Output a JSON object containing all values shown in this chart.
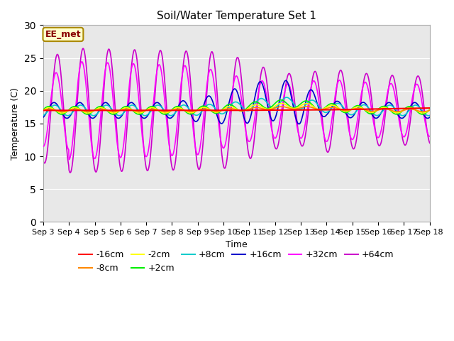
{
  "title": "Soil/Water Temperature Set 1",
  "xlabel": "Time",
  "ylabel": "Temperature (C)",
  "xlim": [
    0,
    15
  ],
  "ylim": [
    0,
    30
  ],
  "yticks": [
    0,
    5,
    10,
    15,
    20,
    25,
    30
  ],
  "xtick_labels": [
    "Sep 3",
    "Sep 4",
    "Sep 5",
    "Sep 6",
    "Sep 7",
    "Sep 8",
    "Sep 9",
    "Sep 10",
    "Sep 11",
    "Sep 12",
    "Sep 13",
    "Sep 14",
    "Sep 15",
    "Sep 16",
    "Sep 17",
    "Sep 18"
  ],
  "annotation_text": "EE_met",
  "annotation_bg": "#ffffcc",
  "annotation_border": "#aa8800",
  "annotation_text_color": "#880000",
  "bg_color": "#e8e8e8",
  "base_temp": 17.0,
  "colors": {
    "neg16": "#ff0000",
    "neg8": "#ff8800",
    "neg2": "#ffff00",
    "pos2": "#00ee00",
    "pos8": "#00cccc",
    "pos16": "#0000cc",
    "pos32": "#ff00ff",
    "pos64": "#cc00cc"
  }
}
